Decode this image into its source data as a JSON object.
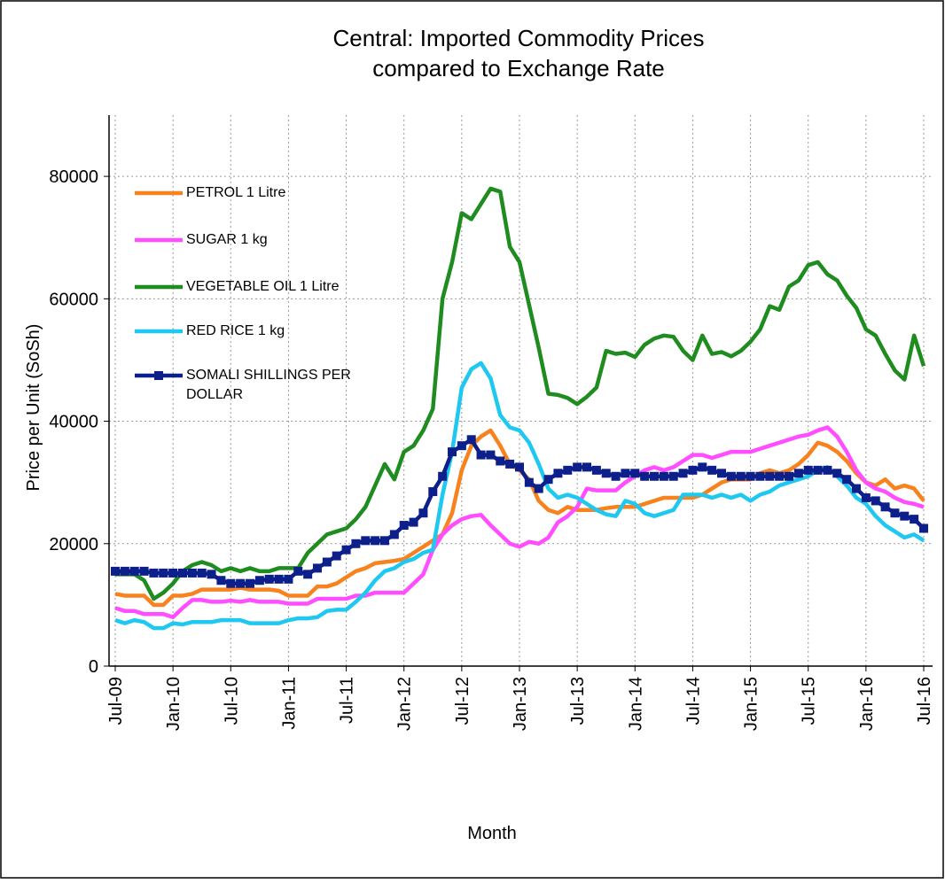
{
  "chart_data": {
    "type": "line",
    "title": "Central: Imported Commodity Prices compared to Exchange Rate",
    "x_label": "Month",
    "y_label": "Price per Unit (SoSh)",
    "categories": [
      "Jul-09",
      null,
      null,
      null,
      null,
      null,
      "Jan-10",
      null,
      null,
      null,
      null,
      null,
      "Jul-10",
      null,
      null,
      null,
      null,
      null,
      "Jan-11",
      null,
      null,
      null,
      null,
      null,
      "Jul-11",
      null,
      null,
      null,
      null,
      null,
      "Jan-12",
      null,
      null,
      null,
      null,
      null,
      "Jul-12",
      null,
      null,
      null,
      null,
      null,
      "Jan-13",
      null,
      null,
      null,
      null,
      null,
      "Jul-13",
      null,
      null,
      null,
      null,
      null,
      "Jan-14",
      null,
      null,
      null,
      null,
      null,
      "Jul-14",
      null,
      null,
      null,
      null,
      null,
      "Jan-15",
      null,
      null,
      null,
      null,
      null,
      "Jul-15",
      null,
      null,
      null,
      null,
      null,
      "Jan-16",
      null,
      null,
      null,
      null,
      null,
      "Jul-16"
    ],
    "ylim": [
      0,
      90000
    ],
    "yticks": [
      0,
      20000,
      40000,
      60000,
      80000
    ],
    "grid": true,
    "legend": "left",
    "series": [
      {
        "name": "PETROL 1 Litre",
        "color": "#f7821e",
        "marker": "none",
        "values": [
          11800,
          11500,
          11500,
          11500,
          10000,
          10000,
          11500,
          11500,
          11800,
          12500,
          12500,
          12500,
          12500,
          12800,
          12500,
          12500,
          12500,
          12300,
          11500,
          11500,
          11500,
          13000,
          13000,
          13500,
          14500,
          15500,
          16000,
          16800,
          17000,
          17200,
          17500,
          18500,
          19500,
          20500,
          21500,
          25000,
          32000,
          36000,
          37500,
          38500,
          36000,
          33000,
          32000,
          30500,
          27000,
          25500,
          25000,
          26000,
          25500,
          25500,
          25500,
          25800,
          26000,
          26000,
          26000,
          26500,
          27000,
          27500,
          27500,
          27500,
          27500,
          28000,
          29000,
          30000,
          30500,
          30500,
          30500,
          31500,
          32000,
          31500,
          32000,
          33000,
          34500,
          36500,
          36000,
          35000,
          33500,
          31500,
          30000,
          29500,
          30500,
          29000,
          29500,
          29000,
          27000
        ]
      },
      {
        "name": "SUGAR 1 kg",
        "color": "#ff4dff",
        "marker": "none",
        "values": [
          9500,
          9000,
          9000,
          8500,
          8500,
          8500,
          8000,
          9500,
          10800,
          10800,
          10500,
          10500,
          10700,
          10500,
          10800,
          10500,
          10500,
          10500,
          10200,
          10200,
          10200,
          11000,
          11000,
          11000,
          11000,
          11500,
          11500,
          12000,
          12000,
          12000,
          12000,
          13500,
          15000,
          19000,
          21500,
          23000,
          24000,
          24500,
          24700,
          23000,
          21500,
          20000,
          19500,
          20300,
          20000,
          21000,
          23500,
          24500,
          26000,
          29000,
          28700,
          28700,
          28700,
          30000,
          31000,
          32000,
          32500,
          32000,
          32500,
          33500,
          34500,
          34500,
          34000,
          34500,
          35000,
          35000,
          35000,
          35500,
          36000,
          36500,
          37000,
          37500,
          37800,
          38500,
          39000,
          37500,
          35000,
          32000,
          30000,
          29000,
          28500,
          27500,
          26800,
          26500,
          26000
        ]
      },
      {
        "name": "VEGETABLE OIL 1 Litre",
        "color": "#1e8c1e",
        "marker": "none",
        "values": [
          15000,
          15000,
          15000,
          14000,
          11000,
          12000,
          13500,
          15500,
          16500,
          17000,
          16500,
          15500,
          16000,
          15500,
          16000,
          15500,
          15500,
          16000,
          16000,
          16000,
          18500,
          20000,
          21500,
          22000,
          22500,
          24000,
          26000,
          29500,
          33000,
          30500,
          35000,
          36000,
          38500,
          42000,
          60000,
          66000,
          74000,
          73000,
          75500,
          78000,
          77500,
          68500,
          66000,
          59000,
          52000,
          44500,
          44300,
          43800,
          42800,
          44000,
          45500,
          51500,
          51000,
          51200,
          50500,
          52500,
          53500,
          54000,
          53800,
          51500,
          50000,
          54000,
          51000,
          51300,
          50600,
          51500,
          53000,
          55000,
          58800,
          58200,
          62000,
          63000,
          65500,
          66000,
          64000,
          63000,
          60500,
          58500,
          55000,
          54000,
          51000,
          48300,
          46800,
          54000,
          49000
        ]
      },
      {
        "name": "RED RICE 1 kg",
        "color": "#1ec8f0",
        "marker": "none",
        "values": [
          7500,
          7000,
          7500,
          7200,
          6200,
          6200,
          7000,
          6800,
          7200,
          7200,
          7200,
          7500,
          7500,
          7500,
          7000,
          7000,
          7000,
          7000,
          7500,
          7800,
          7800,
          8000,
          9000,
          9200,
          9200,
          10500,
          12000,
          14000,
          15500,
          16000,
          17000,
          17500,
          18500,
          19000,
          28000,
          35000,
          45500,
          48500,
          49500,
          47000,
          41000,
          39000,
          38500,
          36500,
          33000,
          29000,
          27500,
          28000,
          27500,
          26500,
          25500,
          24800,
          24500,
          27000,
          26500,
          25000,
          24500,
          25000,
          25500,
          28000,
          28000,
          28000,
          27500,
          28000,
          27500,
          28000,
          27000,
          28000,
          28500,
          29500,
          30000,
          30500,
          31000,
          32000,
          32500,
          31000,
          29500,
          27500,
          26500,
          24500,
          23000,
          22000,
          21000,
          21500,
          20500
        ]
      },
      {
        "name": "SOMALI SHILLINGS PER DOLLAR",
        "color": "#0d1f8a",
        "marker": "square",
        "values": [
          15500,
          15500,
          15500,
          15500,
          15200,
          15200,
          15200,
          15200,
          15200,
          15200,
          15000,
          14000,
          13500,
          13500,
          13500,
          14000,
          14200,
          14200,
          14200,
          15500,
          15000,
          16000,
          17000,
          18000,
          19000,
          20000,
          20500,
          20500,
          20500,
          21500,
          23000,
          23500,
          25000,
          28500,
          31000,
          35000,
          36000,
          37000,
          34500,
          34500,
          33500,
          33000,
          32500,
          30000,
          29000,
          30500,
          31500,
          32000,
          32500,
          32500,
          32000,
          31500,
          31000,
          31500,
          31500,
          31000,
          31000,
          31000,
          31000,
          31500,
          32000,
          32500,
          32000,
          31500,
          31000,
          31000,
          31000,
          31000,
          31000,
          31000,
          31000,
          31500,
          32000,
          32000,
          32000,
          31500,
          30500,
          29000,
          27500,
          27000,
          26000,
          25000,
          24500,
          24000,
          22500
        ]
      }
    ]
  }
}
